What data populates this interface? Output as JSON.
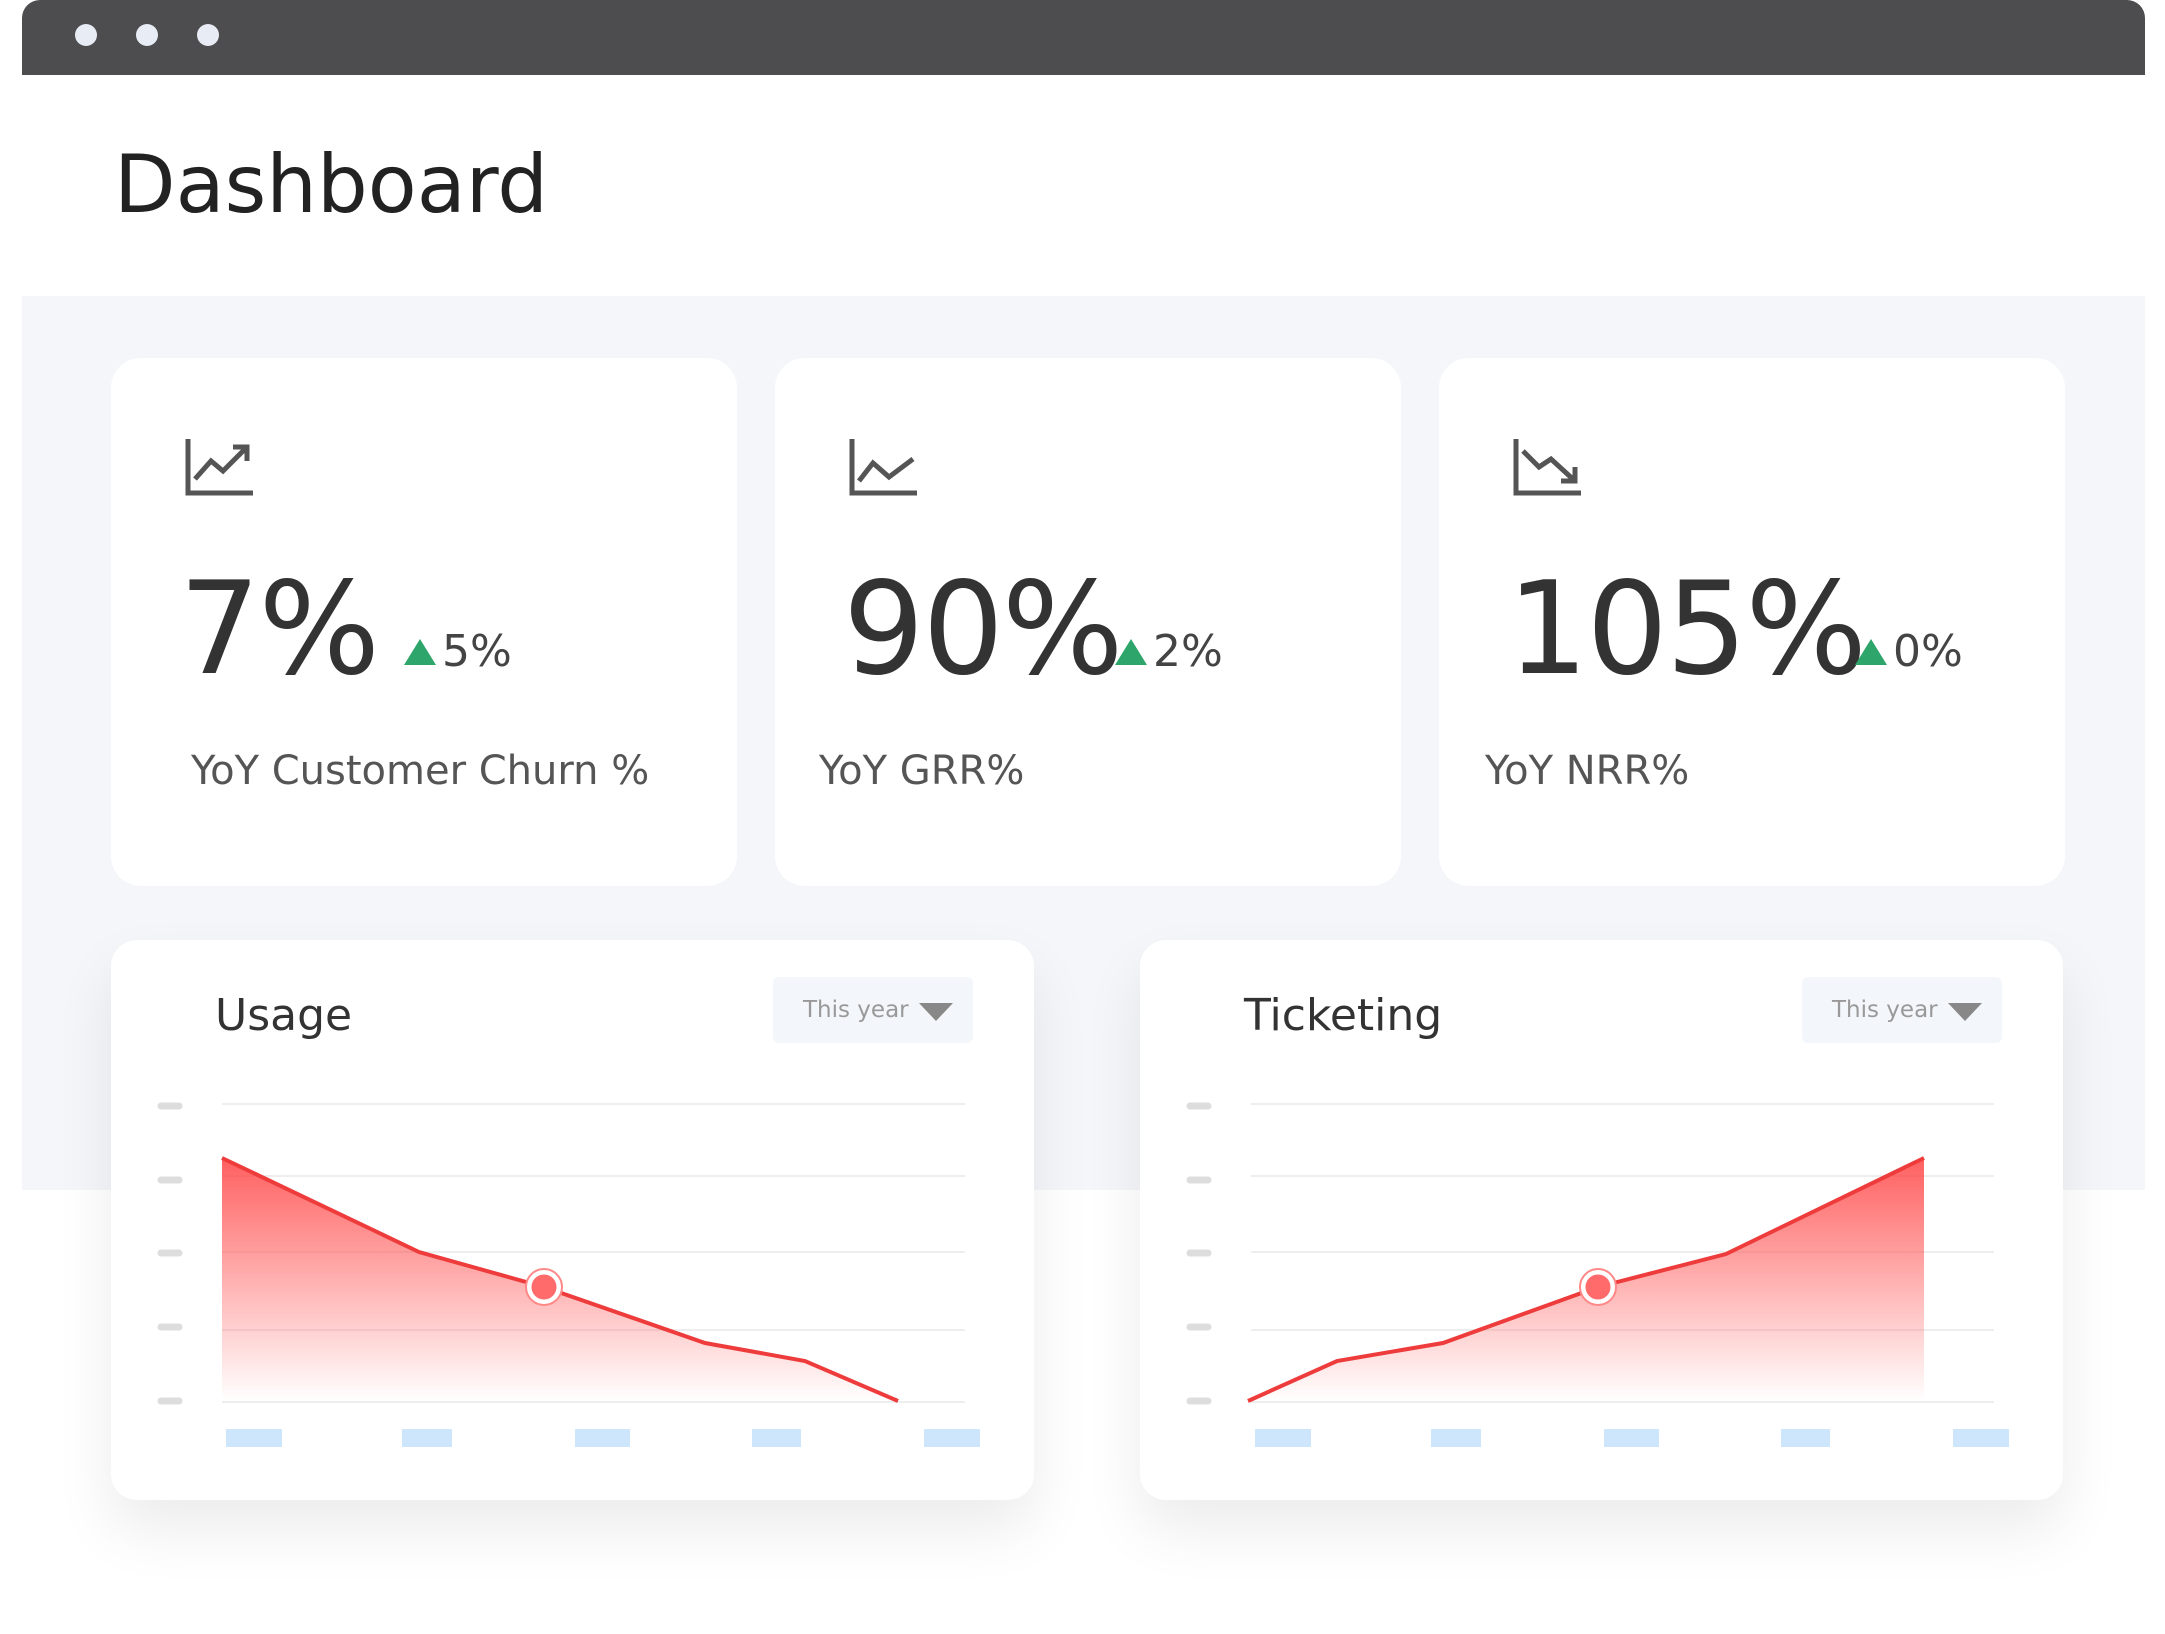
{
  "header": {
    "title": "Dashboard"
  },
  "cards": [
    {
      "value": "7%",
      "change": "5%",
      "label": "YoY Customer Churn %"
    },
    {
      "value": "90%",
      "change": "2%",
      "label": "YoY GRR%"
    },
    {
      "value": "105%",
      "change": "0%",
      "label": "YoY NRR%"
    }
  ],
  "panels": [
    {
      "title": "Usage",
      "dropdown": "This year"
    },
    {
      "title": "Ticketing",
      "dropdown": "This year"
    }
  ]
}
